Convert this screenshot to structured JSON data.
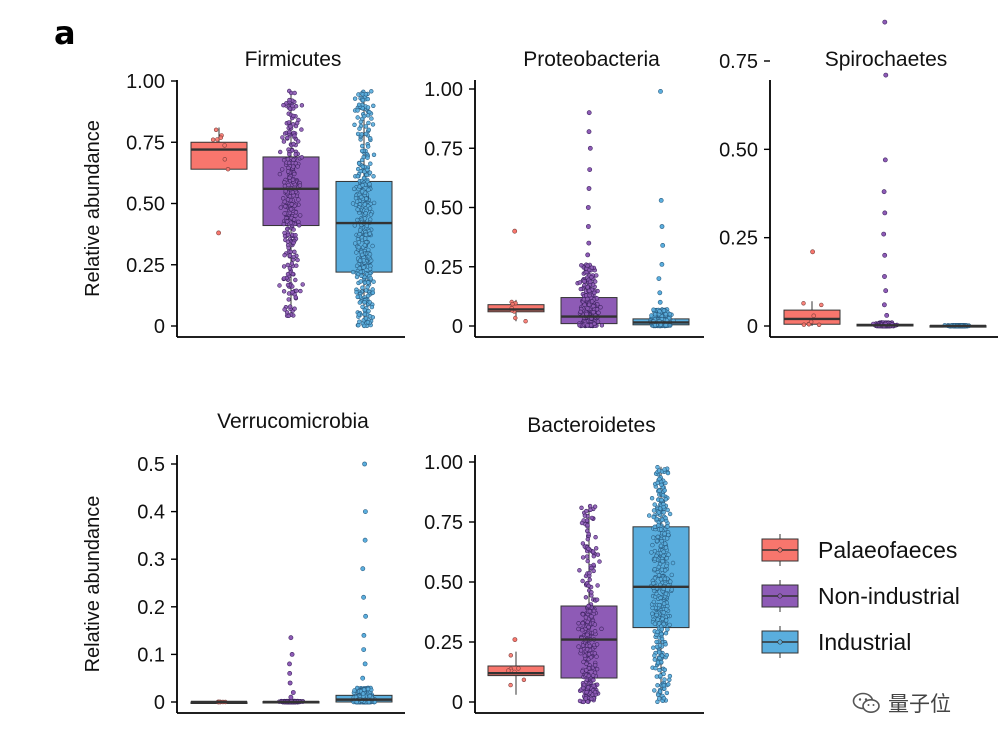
{
  "figure_label": "a",
  "watermark": "量子位",
  "y_axis_label": "Relative abundance",
  "legend": {
    "entries": [
      {
        "label": "Palaeofaeces",
        "color": "#F8766D"
      },
      {
        "label": "Non-industrial",
        "color": "#8E5BB6"
      },
      {
        "label": "Industrial",
        "color": "#5AAEDE"
      }
    ]
  },
  "chart_data": [
    {
      "type": "boxplot",
      "title": "Firmicutes",
      "ylabel": "Relative abundance",
      "ylim": [
        0,
        1.0
      ],
      "yticks": [
        0,
        0.25,
        0.5,
        0.75,
        1.0
      ],
      "ytick_labels": [
        "0",
        "0.25",
        "0.50",
        "0.75",
        "1.00"
      ],
      "groups": [
        {
          "name": "Palaeofaeces",
          "min": 0.64,
          "q1": 0.64,
          "median": 0.72,
          "q3": 0.75,
          "max": 0.81,
          "n": 8,
          "outliers": [
            0.38
          ]
        },
        {
          "name": "Non-industrial",
          "min": 0.04,
          "q1": 0.41,
          "median": 0.56,
          "q3": 0.69,
          "max": 0.96,
          "n": 300,
          "outliers": []
        },
        {
          "name": "Industrial",
          "min": 0.0,
          "q1": 0.22,
          "median": 0.42,
          "q3": 0.59,
          "max": 0.96,
          "n": 400,
          "outliers": []
        }
      ]
    },
    {
      "type": "boxplot",
      "title": "Proteobacteria",
      "ylabel": "",
      "ylim": [
        0,
        1.0
      ],
      "yticks": [
        0,
        0.25,
        0.5,
        0.75,
        1.0
      ],
      "ytick_labels": [
        "0",
        "0.25",
        "0.50",
        "0.75",
        "1.00"
      ],
      "groups": [
        {
          "name": "Palaeofaeces",
          "min": 0.02,
          "q1": 0.06,
          "median": 0.07,
          "q3": 0.09,
          "max": 0.11,
          "n": 8,
          "outliers": [
            0.4
          ]
        },
        {
          "name": "Non-industrial",
          "min": 0.0,
          "q1": 0.01,
          "median": 0.04,
          "q3": 0.12,
          "max": 0.26,
          "n": 300,
          "outliers": [
            0.3,
            0.35,
            0.42,
            0.5,
            0.58,
            0.66,
            0.75,
            0.82,
            0.9
          ]
        },
        {
          "name": "Industrial",
          "min": 0.0,
          "q1": 0.005,
          "median": 0.015,
          "q3": 0.03,
          "max": 0.07,
          "n": 400,
          "outliers": [
            0.1,
            0.14,
            0.2,
            0.26,
            0.34,
            0.42,
            0.53,
            0.99
          ]
        }
      ]
    },
    {
      "type": "boxplot",
      "title": "Spirochaetes",
      "ylabel": "",
      "ylim": [
        0,
        0.87
      ],
      "yticks": [
        0,
        0.25,
        0.5,
        0.75
      ],
      "ytick_labels": [
        "0",
        "0.25",
        "0.50",
        "0.75"
      ],
      "groups": [
        {
          "name": "Palaeofaeces",
          "min": 0.0,
          "q1": 0.005,
          "median": 0.02,
          "q3": 0.045,
          "max": 0.07,
          "n": 8,
          "outliers": [
            0.21
          ]
        },
        {
          "name": "Non-industrial",
          "min": 0.0,
          "q1": 0.0,
          "median": 0.002,
          "q3": 0.005,
          "max": 0.01,
          "n": 300,
          "outliers": [
            0.03,
            0.06,
            0.1,
            0.14,
            0.2,
            0.26,
            0.32,
            0.38,
            0.47,
            0.71,
            0.86
          ]
        },
        {
          "name": "Industrial",
          "min": 0.0,
          "q1": 0.0,
          "median": 0.0,
          "q3": 0.001,
          "max": 0.002,
          "n": 400,
          "outliers": []
        }
      ]
    },
    {
      "type": "boxplot",
      "title": "Verrucomicrobia",
      "ylabel": "Relative abundance",
      "ylim": [
        0,
        0.51
      ],
      "yticks": [
        0,
        0.1,
        0.2,
        0.3,
        0.4,
        0.5
      ],
      "ytick_labels": [
        "0",
        "0.1",
        "0.2",
        "0.3",
        "0.4",
        "0.5"
      ],
      "groups": [
        {
          "name": "Palaeofaeces",
          "min": 0.0,
          "q1": 0.0,
          "median": 0.0,
          "q3": 0.0,
          "max": 0.0,
          "n": 8,
          "outliers": []
        },
        {
          "name": "Non-industrial",
          "min": 0.0,
          "q1": 0.0,
          "median": 0.0,
          "q3": 0.001,
          "max": 0.002,
          "n": 300,
          "outliers": [
            0.01,
            0.02,
            0.04,
            0.06,
            0.08,
            0.1,
            0.135
          ]
        },
        {
          "name": "Industrial",
          "min": 0.0,
          "q1": 0.0,
          "median": 0.005,
          "q3": 0.014,
          "max": 0.03,
          "n": 400,
          "outliers": [
            0.05,
            0.08,
            0.11,
            0.14,
            0.18,
            0.22,
            0.28,
            0.34,
            0.4,
            0.5
          ]
        }
      ]
    },
    {
      "type": "boxplot",
      "title": "Bacteroidetes",
      "ylabel": "",
      "ylim": [
        0,
        1.0
      ],
      "yticks": [
        0,
        0.25,
        0.5,
        0.75,
        1.0
      ],
      "ytick_labels": [
        "0",
        "0.25",
        "0.50",
        "0.75",
        "1.00"
      ],
      "groups": [
        {
          "name": "Palaeofaeces",
          "min": 0.03,
          "q1": 0.11,
          "median": 0.12,
          "q3": 0.15,
          "max": 0.21,
          "n": 8,
          "outliers": [
            0.26
          ]
        },
        {
          "name": "Non-industrial",
          "min": 0.0,
          "q1": 0.1,
          "median": 0.26,
          "q3": 0.4,
          "max": 0.82,
          "n": 300,
          "outliers": []
        },
        {
          "name": "Industrial",
          "min": 0.0,
          "q1": 0.31,
          "median": 0.48,
          "q3": 0.73,
          "max": 0.98,
          "n": 400,
          "outliers": []
        }
      ]
    }
  ]
}
